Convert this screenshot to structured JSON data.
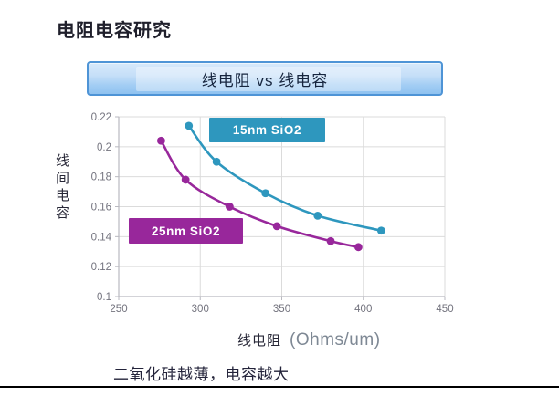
{
  "page": {
    "title": "电阻电容研究",
    "caption": "二氧化硅越薄，电容越大"
  },
  "banner": {
    "label": "线电阻 vs 线电容"
  },
  "colors": {
    "accent_teal": "#2e97be",
    "accent_purple": "#98279b",
    "banner_border": "#4e94d6",
    "grid": "#dbdbdb",
    "axis": "#b9b9c0",
    "tick_text": "#73737e"
  },
  "chart_data": {
    "type": "scatter",
    "title": "",
    "xlabel": "线电阻",
    "xlabel_unit": "(Ohms/um)",
    "ylabel": "线间电容",
    "xlim": [
      250,
      450
    ],
    "ylim": [
      0.1,
      0.22
    ],
    "x_ticks": [
      250,
      300,
      350,
      400,
      450
    ],
    "y_ticks": [
      0.22,
      0.2,
      0.18,
      0.16,
      0.14,
      0.12,
      0.1
    ],
    "y_tick_labels": [
      "0.22",
      "0.2",
      "0.18",
      "0.16",
      "0.14",
      "0.12",
      "0.1"
    ],
    "grid": true,
    "legend_position": "inside-plot",
    "series": [
      {
        "name": "15nm SiO2",
        "label": "15nm SiO2",
        "color": "#2e97be",
        "points": [
          {
            "x": 293,
            "y": 0.214
          },
          {
            "x": 310,
            "y": 0.19
          },
          {
            "x": 340,
            "y": 0.169
          },
          {
            "x": 372,
            "y": 0.154
          },
          {
            "x": 411,
            "y": 0.144
          }
        ]
      },
      {
        "name": "25nm SiO2",
        "label": "25nm SiO2",
        "color": "#98279b",
        "points": [
          {
            "x": 276,
            "y": 0.204
          },
          {
            "x": 291,
            "y": 0.178
          },
          {
            "x": 318,
            "y": 0.16
          },
          {
            "x": 347,
            "y": 0.147
          },
          {
            "x": 380,
            "y": 0.137
          },
          {
            "x": 397,
            "y": 0.133
          }
        ]
      }
    ]
  }
}
